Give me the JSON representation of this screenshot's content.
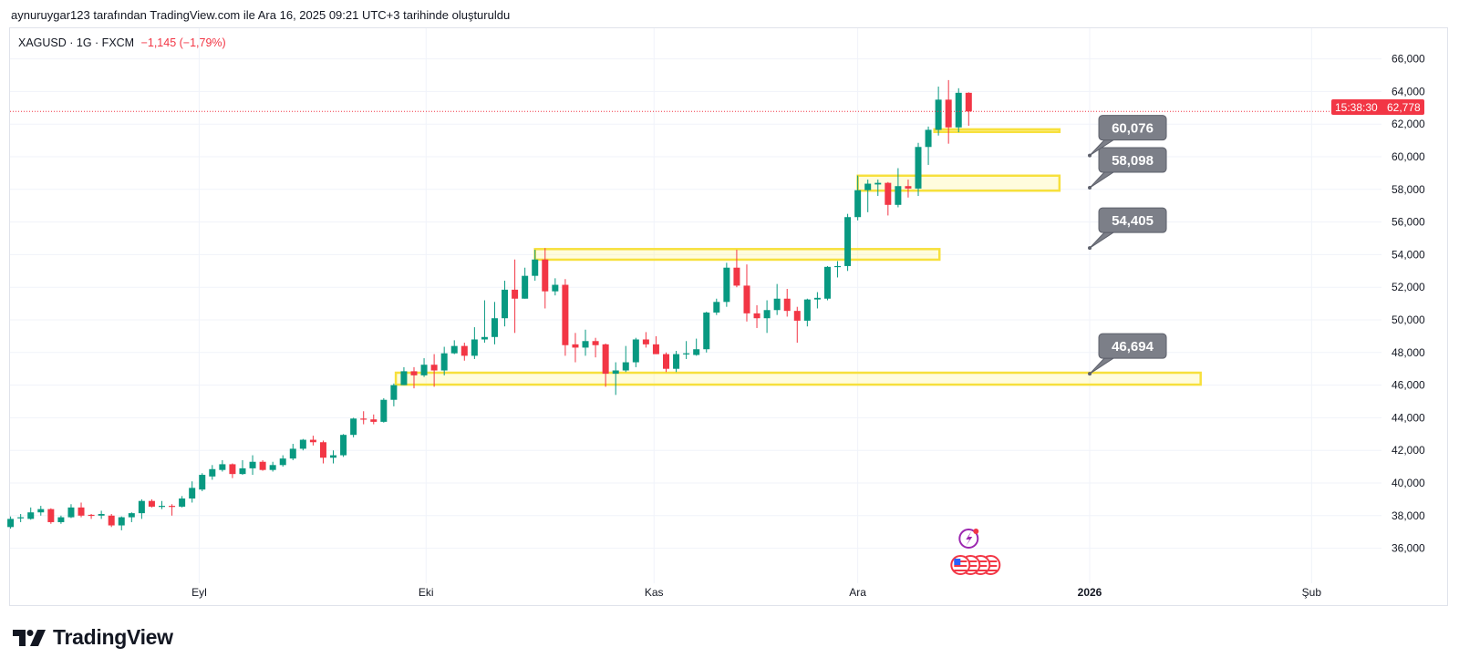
{
  "caption": "aynuruygar123 tarafından TradingView.com ile Ara 16, 2025 09:21 UTC+3 tarihinde oluşturuldu",
  "legend": {
    "symbol": "XAGUSD · 1G · FXCM",
    "change": "−1,145 (−1,79%)"
  },
  "last_price": {
    "value": "62,778",
    "countdown": "15:38:30"
  },
  "brand": "TradingView",
  "colors": {
    "up": "#089981",
    "down": "#f23645",
    "zone": "#f7e03c",
    "callout": "#7c7f88",
    "grid": "#f0f3fa"
  },
  "chart_data": {
    "type": "candlestick",
    "title": "XAGUSD · 1G · FXCM",
    "ylim": [
      34.6,
      66.8
    ],
    "y_ticks": [
      {
        "value": 66,
        "label": "66,000"
      },
      {
        "value": 64,
        "label": "64,000"
      },
      {
        "value": 62,
        "label": "62,000"
      },
      {
        "value": 60,
        "label": "60,000"
      },
      {
        "value": 58,
        "label": "58,000"
      },
      {
        "value": 56,
        "label": "56,000"
      },
      {
        "value": 54,
        "label": "54,000"
      },
      {
        "value": 52,
        "label": "52,000"
      },
      {
        "value": 50,
        "label": "50,000"
      },
      {
        "value": 48,
        "label": "48,000"
      },
      {
        "value": 46,
        "label": "46,000"
      },
      {
        "value": 44,
        "label": "44,000"
      },
      {
        "value": 42,
        "label": "42,000"
      },
      {
        "value": 40,
        "label": "40,000"
      },
      {
        "value": 38,
        "label": "38,000"
      },
      {
        "value": 36,
        "label": "36,000"
      }
    ],
    "x_ticks": [
      {
        "index": 18.7,
        "label": "Eyl",
        "bold": false
      },
      {
        "index": 41.2,
        "label": "Eki",
        "bold": false
      },
      {
        "index": 63.8,
        "label": "Kas",
        "bold": false
      },
      {
        "index": 84,
        "label": "Ara",
        "bold": false
      },
      {
        "index": 107,
        "label": "2026",
        "bold": true
      },
      {
        "index": 129,
        "label": "Şub",
        "bold": false
      }
    ],
    "ohlc": [
      [
        37.3,
        37.95,
        37.2,
        37.8
      ],
      [
        37.85,
        38.1,
        37.6,
        37.9
      ],
      [
        37.8,
        38.5,
        37.75,
        38.2
      ],
      [
        38.2,
        38.6,
        38.0,
        38.4
      ],
      [
        38.4,
        38.45,
        37.5,
        37.6
      ],
      [
        37.6,
        38.0,
        37.5,
        37.9
      ],
      [
        37.9,
        38.7,
        37.85,
        38.5
      ],
      [
        38.5,
        38.8,
        37.9,
        38.0
      ],
      [
        38.05,
        38.1,
        37.8,
        38.0
      ],
      [
        38.0,
        38.3,
        37.8,
        38.1
      ],
      [
        38.0,
        38.1,
        37.3,
        37.4
      ],
      [
        37.4,
        37.95,
        37.1,
        37.9
      ],
      [
        37.9,
        38.2,
        37.6,
        38.15
      ],
      [
        38.15,
        39.0,
        37.8,
        38.9
      ],
      [
        38.9,
        39.0,
        38.5,
        38.55
      ],
      [
        38.55,
        38.9,
        38.4,
        38.6
      ],
      [
        38.6,
        38.7,
        38.0,
        38.55
      ],
      [
        38.55,
        39.2,
        38.5,
        39.05
      ],
      [
        39.05,
        40.1,
        38.8,
        39.7
      ],
      [
        39.6,
        40.6,
        39.5,
        40.5
      ],
      [
        40.4,
        41.1,
        40.2,
        40.85
      ],
      [
        40.8,
        41.4,
        40.7,
        41.15
      ],
      [
        41.15,
        41.2,
        40.3,
        40.55
      ],
      [
        40.55,
        41.4,
        40.5,
        40.9
      ],
      [
        40.9,
        41.7,
        40.5,
        41.3
      ],
      [
        41.3,
        41.4,
        40.75,
        40.8
      ],
      [
        40.8,
        41.3,
        40.7,
        41.1
      ],
      [
        41.1,
        41.7,
        41.0,
        41.5
      ],
      [
        41.5,
        42.4,
        41.4,
        42.1
      ],
      [
        42.1,
        42.7,
        42.0,
        42.65
      ],
      [
        42.65,
        42.9,
        42.3,
        42.5
      ],
      [
        42.5,
        42.6,
        41.2,
        41.55
      ],
      [
        41.55,
        42.0,
        41.2,
        41.7
      ],
      [
        41.7,
        43.0,
        41.6,
        42.95
      ],
      [
        42.95,
        44.0,
        42.8,
        43.95
      ],
      [
        43.95,
        44.4,
        43.6,
        43.9
      ],
      [
        43.9,
        44.2,
        43.6,
        43.75
      ],
      [
        43.75,
        45.2,
        43.7,
        45.1
      ],
      [
        45.1,
        46.1,
        44.7,
        46.0
      ],
      [
        46.0,
        47.1,
        46.0,
        46.85
      ],
      [
        46.85,
        47.1,
        45.8,
        46.6
      ],
      [
        46.6,
        47.65,
        46.5,
        47.25
      ],
      [
        47.25,
        47.9,
        45.9,
        46.9
      ],
      [
        46.9,
        48.35,
        46.6,
        47.95
      ],
      [
        47.95,
        48.75,
        47.9,
        48.4
      ],
      [
        48.4,
        48.6,
        47.5,
        47.8
      ],
      [
        47.8,
        49.55,
        47.6,
        48.8
      ],
      [
        48.8,
        51.2,
        48.6,
        48.95
      ],
      [
        48.95,
        51.1,
        48.5,
        50.1
      ],
      [
        50.1,
        52.4,
        49.6,
        51.85
      ],
      [
        51.85,
        53.7,
        49.2,
        51.3
      ],
      [
        51.3,
        53.2,
        51.3,
        52.7
      ],
      [
        52.7,
        54.3,
        52.4,
        53.7
      ],
      [
        53.7,
        54.4,
        50.7,
        51.75
      ],
      [
        51.75,
        52.55,
        51.5,
        52.15
      ],
      [
        52.15,
        52.5,
        47.8,
        48.45
      ],
      [
        48.5,
        49.2,
        47.4,
        48.3
      ],
      [
        48.3,
        49.4,
        47.8,
        48.7
      ],
      [
        48.7,
        48.9,
        47.7,
        48.45
      ],
      [
        48.5,
        48.55,
        45.9,
        46.7
      ],
      [
        46.7,
        47.4,
        45.4,
        46.9
      ],
      [
        46.9,
        48.4,
        46.8,
        47.4
      ],
      [
        47.4,
        48.9,
        47.1,
        48.8
      ],
      [
        48.8,
        49.25,
        48.3,
        48.5
      ],
      [
        48.5,
        49.0,
        47.9,
        47.9
      ],
      [
        47.9,
        48.0,
        46.8,
        47.0
      ],
      [
        47.0,
        48.1,
        46.8,
        47.9
      ],
      [
        47.9,
        48.7,
        47.6,
        47.95
      ],
      [
        47.85,
        48.85,
        47.8,
        48.2
      ],
      [
        48.2,
        50.5,
        48.0,
        50.45
      ],
      [
        50.45,
        51.3,
        50.3,
        51.1
      ],
      [
        51.1,
        53.5,
        50.8,
        53.2
      ],
      [
        53.2,
        54.3,
        52.0,
        52.1
      ],
      [
        52.1,
        53.4,
        49.9,
        50.4
      ],
      [
        50.4,
        50.9,
        49.5,
        50.1
      ],
      [
        50.1,
        51.2,
        49.2,
        50.6
      ],
      [
        50.6,
        52.2,
        50.3,
        51.3
      ],
      [
        51.3,
        51.9,
        50.2,
        50.55
      ],
      [
        50.55,
        50.8,
        48.6,
        49.95
      ],
      [
        49.95,
        51.3,
        49.6,
        51.25
      ],
      [
        51.25,
        51.7,
        50.7,
        51.35
      ],
      [
        51.3,
        53.3,
        51.2,
        53.25
      ],
      [
        53.25,
        53.6,
        52.6,
        53.3
      ],
      [
        53.3,
        56.5,
        53.0,
        56.3
      ],
      [
        56.3,
        58.85,
        56.1,
        57.95
      ],
      [
        57.95,
        58.6,
        56.6,
        58.35
      ],
      [
        58.3,
        58.6,
        57.6,
        58.4
      ],
      [
        58.4,
        58.45,
        56.4,
        57.05
      ],
      [
        57.05,
        59.3,
        56.9,
        58.2
      ],
      [
        58.2,
        58.6,
        57.5,
        58.05
      ],
      [
        58.05,
        60.85,
        57.6,
        60.6
      ],
      [
        60.6,
        61.85,
        59.5,
        61.65
      ],
      [
        61.65,
        64.3,
        61.3,
        63.5
      ],
      [
        63.5,
        64.7,
        60.8,
        61.8
      ],
      [
        61.8,
        64.2,
        61.5,
        63.92
      ],
      [
        63.92,
        63.95,
        61.9,
        62.778
      ]
    ],
    "last_close": 62.778,
    "zones": [
      {
        "from_index": 38.2,
        "to_index": 118,
        "top": 46.76,
        "bottom": 46.03
      },
      {
        "from_index": 52,
        "to_index": 92.1,
        "top": 54.34,
        "bottom": 53.69
      },
      {
        "from_index": 84,
        "to_index": 104,
        "top": 58.84,
        "bottom": 57.92
      },
      {
        "from_index": 91.6,
        "to_index": 104,
        "top": 61.68,
        "bottom": 61.52
      }
    ],
    "callouts": [
      {
        "text": "60,076",
        "price": 60.076,
        "index": 107
      },
      {
        "text": "58,098",
        "price": 58.098,
        "index": 107
      },
      {
        "text": "54,405",
        "price": 54.405,
        "index": 107
      },
      {
        "text": "46,694",
        "price": 46.694,
        "index": 107
      }
    ],
    "events": [
      {
        "type": "lightning-event",
        "index": 95
      },
      {
        "type": "us-economic-event",
        "index": 95
      }
    ]
  }
}
